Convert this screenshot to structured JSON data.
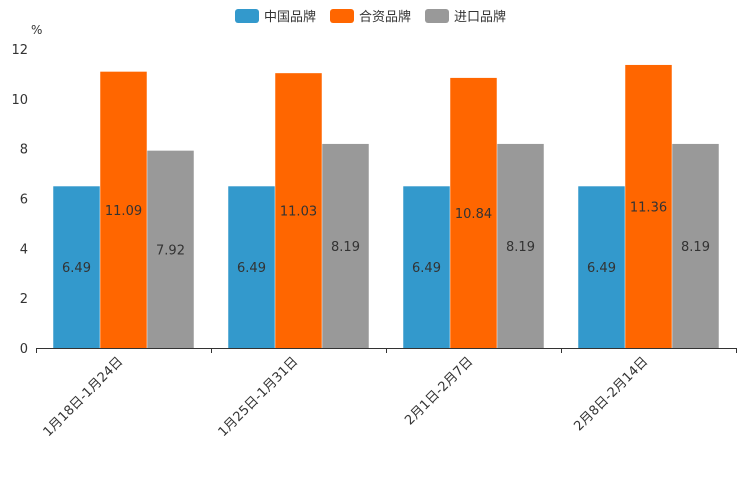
{
  "chart_data": {
    "type": "bar",
    "title": "",
    "xlabel": "",
    "ylabel": "%",
    "ylim": [
      0,
      12
    ],
    "yticks": [
      0,
      2,
      4,
      6,
      8,
      10,
      12
    ],
    "grid": false,
    "legend_position": "top-center",
    "categories": [
      "1月18日-1月24日",
      "1月25日-1月31日",
      "2月1日-2月7日",
      "2月8日-2月14日"
    ],
    "series": [
      {
        "name": "中国品牌",
        "color": "#3399cc",
        "values": [
          6.49,
          6.49,
          6.49,
          6.49
        ]
      },
      {
        "name": "合资品牌",
        "color": "#ff6600",
        "values": [
          11.09,
          11.03,
          10.84,
          11.36
        ]
      },
      {
        "name": "进口品牌",
        "color": "#999999",
        "values": [
          7.92,
          8.19,
          8.19,
          8.19
        ]
      }
    ]
  }
}
